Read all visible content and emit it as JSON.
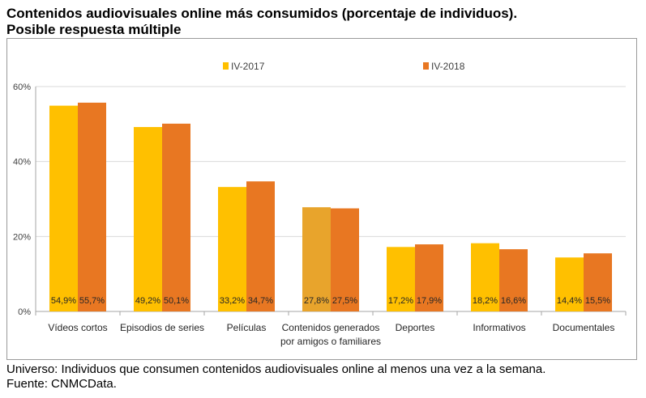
{
  "title_line1": "Contenidos audiovisuales online más consumidos (porcentaje de individuos).",
  "title_line2": "Posible respuesta múltiple",
  "footer_line1": "Universo: Individuos que consumen contenidos audiovisuales online al menos una vez a la semana.",
  "footer_line2": "Fuente: CNMCData.",
  "chart_data": {
    "type": "bar",
    "title": "",
    "xlabel": "",
    "ylabel": "",
    "ylim": [
      0,
      60
    ],
    "yticks": [
      "0%",
      "20%",
      "40%",
      "60%"
    ],
    "ytick_values": [
      0,
      20,
      40,
      60
    ],
    "grid": true,
    "legend_position": "top",
    "categories": [
      [
        "Vídeos cortos"
      ],
      [
        "Episodios de series"
      ],
      [
        "Películas"
      ],
      [
        "Contenidos generados",
        "por amigos o familiares"
      ],
      [
        "Deportes"
      ],
      [
        "Informativos"
      ],
      [
        "Documentales"
      ]
    ],
    "series": [
      {
        "name": "IV-2017",
        "color": "#FFC000",
        "values": [
          54.9,
          49.2,
          33.2,
          27.8,
          17.2,
          18.2,
          14.4
        ],
        "labels": [
          "54,9%",
          "49,2%",
          "33,2%",
          "27,8%",
          "17,2%",
          "18,2%",
          "14,4%"
        ],
        "highlight": {
          "index": 3,
          "color": "#E8A42C"
        }
      },
      {
        "name": "IV-2018",
        "color": "#E87722",
        "values": [
          55.7,
          50.1,
          34.7,
          27.5,
          17.9,
          16.6,
          15.5
        ],
        "labels": [
          "55,7%",
          "50,1%",
          "34,7%",
          "27,5%",
          "17,9%",
          "16,6%",
          "15,5%"
        ]
      }
    ]
  }
}
